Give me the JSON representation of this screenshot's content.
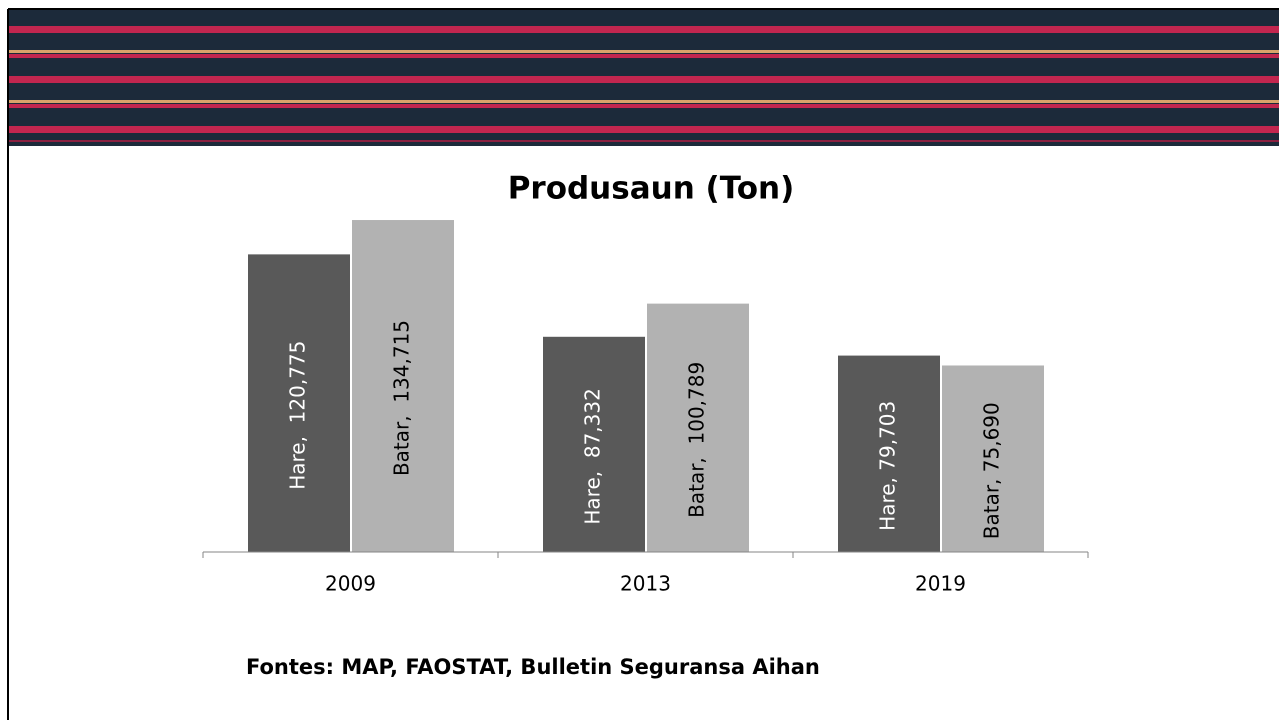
{
  "chart_data": {
    "type": "bar",
    "title": "Produsaun (Ton)",
    "categories": [
      "2009",
      "2013",
      "2019"
    ],
    "series": [
      {
        "name": "Hare",
        "color": "#595959",
        "values": [
          120775,
          87332,
          79703
        ],
        "value_labels": [
          "Hare,  120,775",
          "Hare,  87,332",
          "Hare, 79,703"
        ]
      },
      {
        "name": "Batar",
        "color": "#b2b2b2",
        "values": [
          134715,
          100789,
          75690
        ],
        "value_labels": [
          "Batar,  134,715",
          "Batar,  100,789",
          "Batar, 75,690"
        ]
      }
    ],
    "ylim": [
      0,
      140000
    ],
    "source": "Fontes: MAP, FAOSTAT, Bulletin Seguransa Aihan"
  }
}
